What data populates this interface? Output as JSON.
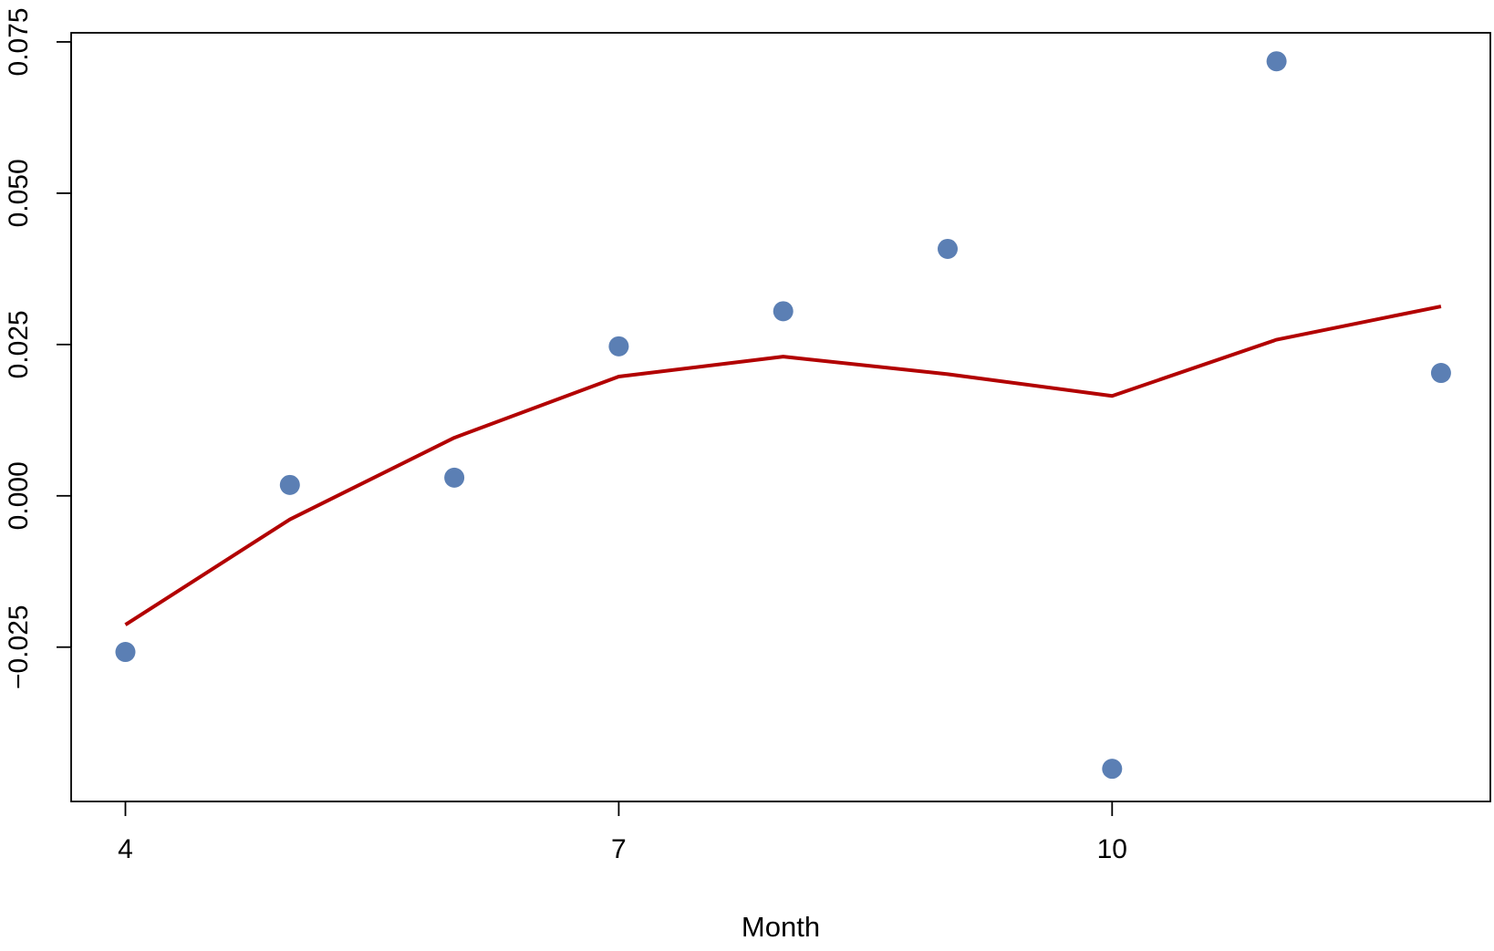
{
  "chart_data": {
    "type": "scatter",
    "xlabel": "Month",
    "ylabel": "",
    "xlim": [
      3.67,
      12.3
    ],
    "ylim": [
      -0.0505,
      0.0765
    ],
    "x_ticks": [
      4,
      7,
      10
    ],
    "x_tick_labels": [
      "4",
      "7",
      "10"
    ],
    "y_ticks": [
      -0.025,
      0.0,
      0.025,
      0.05,
      0.075
    ],
    "y_tick_labels": [
      "−0.025",
      "0.000",
      "0.025",
      "0.050",
      "0.075"
    ],
    "grid": false,
    "series": [
      {
        "kind": "points",
        "color": "#5B7FB4",
        "x": [
          4,
          5,
          6,
          7,
          8,
          9,
          10,
          11,
          12
        ],
        "y": [
          -0.0258,
          0.0018,
          0.003,
          0.0247,
          0.0305,
          0.0408,
          -0.0451,
          0.0718,
          0.0203
        ]
      },
      {
        "kind": "line",
        "color": "#B20000",
        "x": [
          4,
          5,
          6,
          7,
          8,
          9,
          10,
          11,
          12
        ],
        "y": [
          -0.0213,
          -0.0039,
          0.0096,
          0.0197,
          0.023,
          0.0201,
          0.0165,
          0.0258,
          0.0313
        ]
      }
    ]
  }
}
